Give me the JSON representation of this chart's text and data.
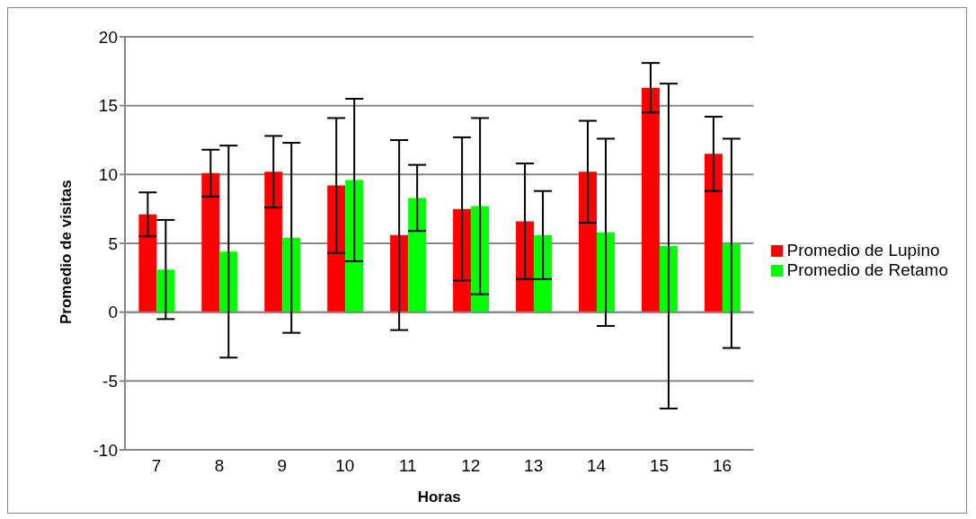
{
  "chart_data": {
    "type": "bar",
    "xlabel": "Horas",
    "ylabel": "Promedio de visitas",
    "categories": [
      "7",
      "8",
      "9",
      "10",
      "11",
      "12",
      "13",
      "14",
      "15",
      "16"
    ],
    "series": [
      {
        "name": "Promedio de Lupino",
        "color": "#ff0000",
        "values": [
          7.1,
          10.1,
          10.2,
          9.2,
          5.6,
          7.5,
          6.6,
          10.2,
          16.3,
          11.5
        ],
        "errors": [
          1.6,
          1.7,
          2.6,
          4.9,
          6.9,
          5.2,
          4.2,
          3.7,
          1.8,
          2.7
        ]
      },
      {
        "name": "Promedio de Retamo",
        "color": "#00ff00",
        "values": [
          3.1,
          4.4,
          5.4,
          9.6,
          8.3,
          7.7,
          5.6,
          5.8,
          4.8,
          5.0
        ],
        "errors": [
          3.6,
          7.7,
          6.9,
          5.9,
          2.4,
          6.4,
          3.2,
          6.8,
          11.8,
          7.6
        ]
      }
    ],
    "ylim": [
      -10,
      20
    ],
    "yticks": [
      -10,
      -5,
      0,
      5,
      10,
      15,
      20
    ],
    "grid": "y",
    "legend": "right"
  }
}
